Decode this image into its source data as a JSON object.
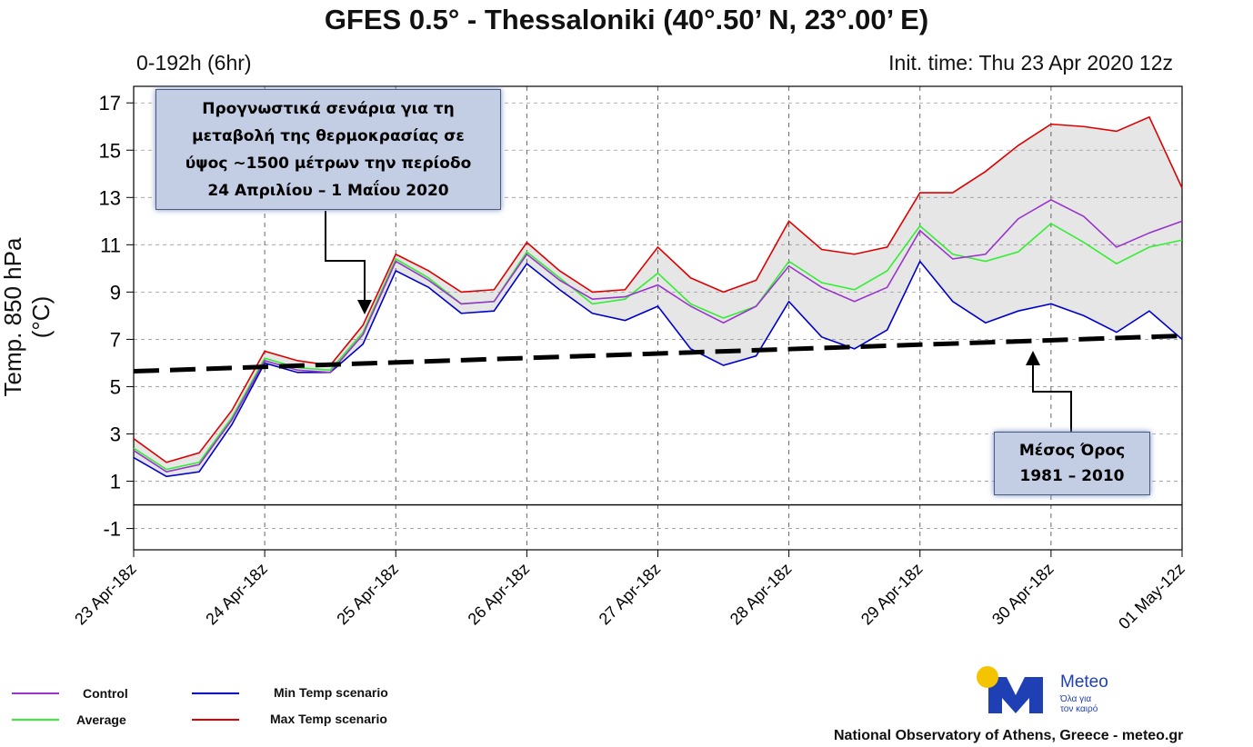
{
  "header": {
    "title": "GFES 0.5° - Thessaloniki (40°.50’ N, 23°.00’ E)",
    "range": "0-192h (6hr)",
    "init_time": "Init. time: Thu 23 Apr 2020 12z"
  },
  "annotations": {
    "forecast_box": [
      "Προγνωστικά σενάρια για τη",
      "μεταβολή της θερμοκρασίας σε",
      "ύψος ~1500 μέτρων την περίοδο",
      "24 Απριλίου – 1 Μαΐου 2020"
    ],
    "climatology_box": [
      "Μέσος Όρος",
      "1981 – 2010"
    ]
  },
  "legend": {
    "control": "Control",
    "average": "Average",
    "min": "Min Temp scenario",
    "max": "Max Temp scenario"
  },
  "logo": {
    "name": "Meteo",
    "tagline1": "Όλα για",
    "tagline2": "τον καιρό"
  },
  "footer": "National Observatory of Athens, Greece - meteo.gr",
  "colors": {
    "control": "#9933cc",
    "average": "#33ee33",
    "min": "#0000cc",
    "max": "#dd0000",
    "members": "#999999",
    "envelope": "#e6e6e6",
    "logo_blue": "#1f3fb5",
    "logo_sun": "#f5c400",
    "box_fill": "#c3cde3"
  },
  "chart_data": {
    "type": "line",
    "title": "GFES 0.5° - Thessaloniki (40°.50’ N, 23°.00’ E)",
    "ylabel": "Temp. 850 hPa (°C)",
    "xlabel": "",
    "ylim": [
      -1.9,
      17.7
    ],
    "yticks": [
      -1,
      1,
      3,
      5,
      7,
      9,
      11,
      13,
      15,
      17
    ],
    "x_step_hours": 6,
    "x_hours": [
      0,
      6,
      12,
      18,
      24,
      30,
      36,
      42,
      48,
      54,
      60,
      66,
      72,
      78,
      84,
      90,
      96,
      102,
      108,
      114,
      120,
      126,
      132,
      138,
      144,
      150,
      156,
      162,
      168,
      174,
      180,
      186,
      192
    ],
    "xtick_hours": [
      0,
      24,
      48,
      72,
      96,
      120,
      144,
      168,
      192
    ],
    "xtick_labels": [
      "23 Apr-18z",
      "24 Apr-18z",
      "25 Apr-18z",
      "26 Apr-18z",
      "27 Apr-18z",
      "28 Apr-18z",
      "29 Apr-18z",
      "30 Apr-18z",
      "01 May-12z"
    ],
    "grid": true,
    "legend_position": "bottom-left",
    "series": [
      {
        "name": "Max Temp scenario",
        "key": "max",
        "values": [
          2.8,
          1.8,
          2.2,
          4.0,
          6.5,
          6.1,
          5.9,
          7.6,
          10.6,
          9.9,
          9.0,
          9.1,
          11.1,
          9.9,
          9.0,
          9.1,
          10.9,
          9.6,
          9.0,
          9.5,
          12.0,
          10.8,
          10.6,
          10.9,
          13.2,
          13.2,
          14.1,
          15.2,
          16.1,
          16.0,
          15.8,
          16.4,
          13.4
        ]
      },
      {
        "name": "Min Temp scenario",
        "key": "min",
        "values": [
          2.0,
          1.2,
          1.4,
          3.4,
          6.0,
          5.6,
          5.6,
          6.8,
          9.9,
          9.2,
          8.1,
          8.2,
          10.2,
          9.1,
          8.1,
          7.8,
          8.4,
          6.6,
          5.9,
          6.3,
          8.6,
          7.1,
          6.6,
          7.4,
          10.3,
          8.6,
          7.7,
          8.2,
          8.5,
          8.0,
          7.3,
          8.2,
          7.0
        ]
      },
      {
        "name": "Average",
        "key": "average",
        "values": [
          2.4,
          1.5,
          1.8,
          3.7,
          6.2,
          5.8,
          5.7,
          7.3,
          10.4,
          9.6,
          8.5,
          8.6,
          10.7,
          9.6,
          8.5,
          8.7,
          9.8,
          8.5,
          7.9,
          8.4,
          10.3,
          9.4,
          9.1,
          9.9,
          11.8,
          10.6,
          10.3,
          10.7,
          11.9,
          11.1,
          10.2,
          10.9,
          11.2
        ]
      },
      {
        "name": "Control",
        "key": "control",
        "values": [
          2.3,
          1.4,
          1.7,
          3.6,
          6.1,
          5.7,
          5.6,
          7.2,
          10.3,
          9.5,
          8.5,
          8.6,
          10.6,
          9.5,
          8.7,
          8.8,
          9.3,
          8.4,
          7.7,
          8.4,
          10.1,
          9.2,
          8.6,
          9.2,
          11.6,
          10.4,
          10.6,
          12.1,
          12.9,
          12.2,
          10.9,
          11.5,
          12.0
        ]
      }
    ],
    "climatology_1981_2010": {
      "start": 5.65,
      "end": 7.15
    }
  }
}
